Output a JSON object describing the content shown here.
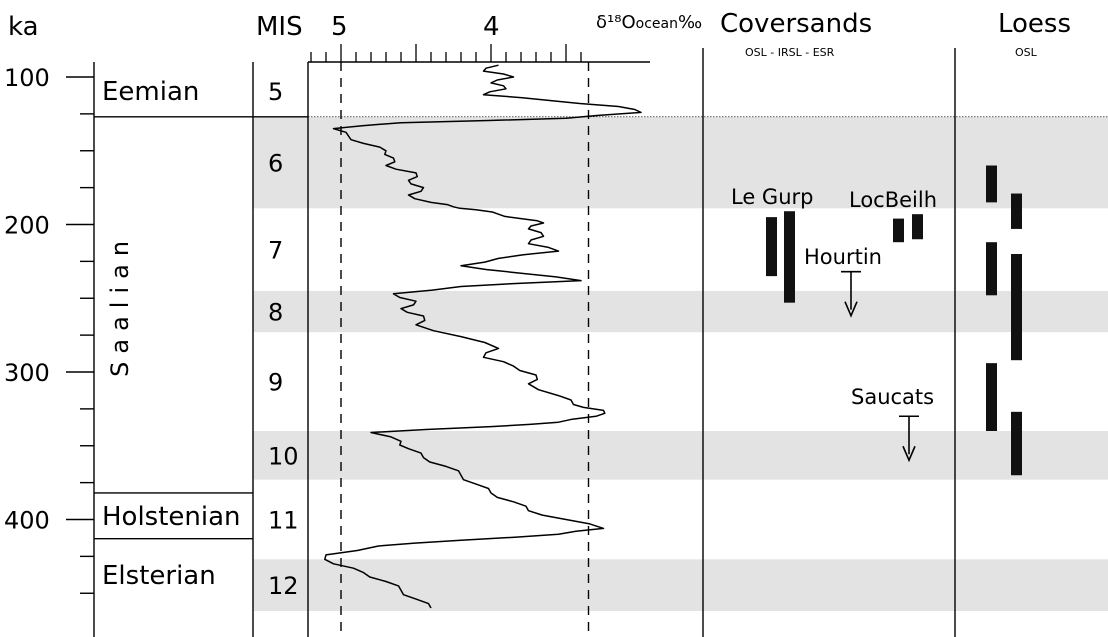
{
  "headers": {
    "ka": "ka",
    "mis": "MIS",
    "scale_5": "5",
    "scale_4": "4",
    "delta_label": "δ¹⁸O",
    "delta_sub": "ocean",
    "delta_unit": "‰",
    "coversands": "Coversands",
    "coversands_methods": "OSL - IRSL - ESR",
    "loess": "Loess",
    "loess_method": "OSL"
  },
  "age_axis": {
    "unit": "ka",
    "range": [
      92,
      462
    ],
    "major_ticks": [
      100,
      200,
      300,
      400
    ],
    "minor_step": 25
  },
  "delta_axis": {
    "range_reversed": [
      5.25,
      3.4
    ],
    "labeled_ticks": [
      5,
      4
    ],
    "minor_step": 0.1,
    "dashed_guides": [
      5.0,
      3.35
    ]
  },
  "stages": [
    {
      "name": "Eemian",
      "top": 92,
      "bottom": 127
    },
    {
      "name": "Saalian",
      "top": 127,
      "bottom": 382
    },
    {
      "name": "Holstenian",
      "top": 382,
      "bottom": 413
    },
    {
      "name": "Elsterian",
      "top": 413,
      "bottom": 462
    }
  ],
  "mis_bands": [
    {
      "label": "5",
      "top": 92,
      "bottom": 127,
      "shaded": false
    },
    {
      "label": "6",
      "top": 127,
      "bottom": 189,
      "shaded": true
    },
    {
      "label": "7",
      "top": 189,
      "bottom": 245,
      "shaded": false
    },
    {
      "label": "8",
      "top": 245,
      "bottom": 273,
      "shaded": true
    },
    {
      "label": "9",
      "top": 273,
      "bottom": 340,
      "shaded": false
    },
    {
      "label": "10",
      "top": 340,
      "bottom": 373,
      "shaded": true
    },
    {
      "label": "11",
      "top": 373,
      "bottom": 427,
      "shaded": false
    },
    {
      "label": "12",
      "top": 427,
      "bottom": 462,
      "shaded": true
    }
  ],
  "chart_data": {
    "type": "line",
    "title": "",
    "xlabel": "δ¹⁸O ocean ‰",
    "ylabel": "ka",
    "xlim": [
      5.25,
      3.4
    ],
    "ylim": [
      92,
      462
    ],
    "grid": false,
    "series": [
      {
        "points": [
          [
            3.95,
            92
          ],
          [
            4.05,
            96
          ],
          [
            3.85,
            100
          ],
          [
            4.0,
            104
          ],
          [
            3.9,
            108
          ],
          [
            4.05,
            112
          ],
          [
            3.6,
            116
          ],
          [
            3.15,
            120
          ],
          [
            3.0,
            124
          ],
          [
            3.5,
            128
          ],
          [
            4.6,
            131
          ],
          [
            5.05,
            135
          ],
          [
            4.95,
            140
          ],
          [
            4.85,
            145
          ],
          [
            4.7,
            150
          ],
          [
            4.65,
            155
          ],
          [
            4.7,
            160
          ],
          [
            4.5,
            165
          ],
          [
            4.55,
            170
          ],
          [
            4.45,
            175
          ],
          [
            4.55,
            180
          ],
          [
            4.4,
            185
          ],
          [
            4.25,
            188
          ],
          [
            4.1,
            190
          ],
          [
            3.95,
            193
          ],
          [
            3.8,
            196
          ],
          [
            3.65,
            199
          ],
          [
            3.75,
            203
          ],
          [
            3.65,
            208
          ],
          [
            3.75,
            213
          ],
          [
            3.55,
            218
          ],
          [
            3.95,
            223
          ],
          [
            4.2,
            228
          ],
          [
            3.8,
            233
          ],
          [
            3.4,
            238
          ],
          [
            4.2,
            242
          ],
          [
            4.65,
            247
          ],
          [
            4.5,
            252
          ],
          [
            4.6,
            257
          ],
          [
            4.45,
            262
          ],
          [
            4.5,
            268
          ],
          [
            4.2,
            276
          ],
          [
            3.95,
            284
          ],
          [
            4.05,
            290
          ],
          [
            3.85,
            296
          ],
          [
            3.7,
            302
          ],
          [
            3.75,
            308
          ],
          [
            3.55,
            316
          ],
          [
            3.45,
            322
          ],
          [
            3.25,
            326
          ],
          [
            3.3,
            330
          ],
          [
            3.55,
            334
          ],
          [
            4.0,
            337
          ],
          [
            4.8,
            341
          ],
          [
            4.6,
            347
          ],
          [
            4.55,
            352
          ],
          [
            4.45,
            358
          ],
          [
            4.3,
            364
          ],
          [
            4.2,
            370
          ],
          [
            4.1,
            376
          ],
          [
            4.0,
            382
          ],
          [
            3.85,
            388
          ],
          [
            3.75,
            394
          ],
          [
            3.5,
            400
          ],
          [
            3.25,
            406
          ],
          [
            3.55,
            410
          ],
          [
            4.2,
            414
          ],
          [
            4.75,
            418
          ],
          [
            5.1,
            424
          ],
          [
            5.05,
            430
          ],
          [
            4.85,
            436
          ],
          [
            4.7,
            442
          ],
          [
            4.6,
            448
          ],
          [
            4.5,
            454
          ],
          [
            4.4,
            460
          ]
        ]
      }
    ]
  },
  "coversands": {
    "bars": [
      {
        "site": "Le Gurp",
        "min": 195,
        "max": 235
      },
      {
        "site": "Le Gurp",
        "min": 191,
        "max": 253
      },
      {
        "site": "LocBeilh",
        "min": 196,
        "max": 212
      },
      {
        "site": "LocBeilh",
        "min": 193,
        "max": 210
      }
    ],
    "minimum_ages": [
      {
        "site": "Hourtin",
        "value": 232
      },
      {
        "site": "Saucats",
        "value": 330
      }
    ],
    "labels": {
      "le_gurp": "Le Gurp",
      "locbeilh": "LocBeilh",
      "hourtin": "Hourtin",
      "saucats": "Saucats"
    }
  },
  "loess": {
    "bars": [
      {
        "min": 160,
        "max": 185
      },
      {
        "min": 179,
        "max": 203
      },
      {
        "min": 212,
        "max": 248
      },
      {
        "min": 220,
        "max": 254
      },
      {
        "min": 238,
        "max": 275
      },
      {
        "min": 256,
        "max": 292
      },
      {
        "min": 294,
        "max": 340
      },
      {
        "min": 327,
        "max": 370
      }
    ]
  }
}
